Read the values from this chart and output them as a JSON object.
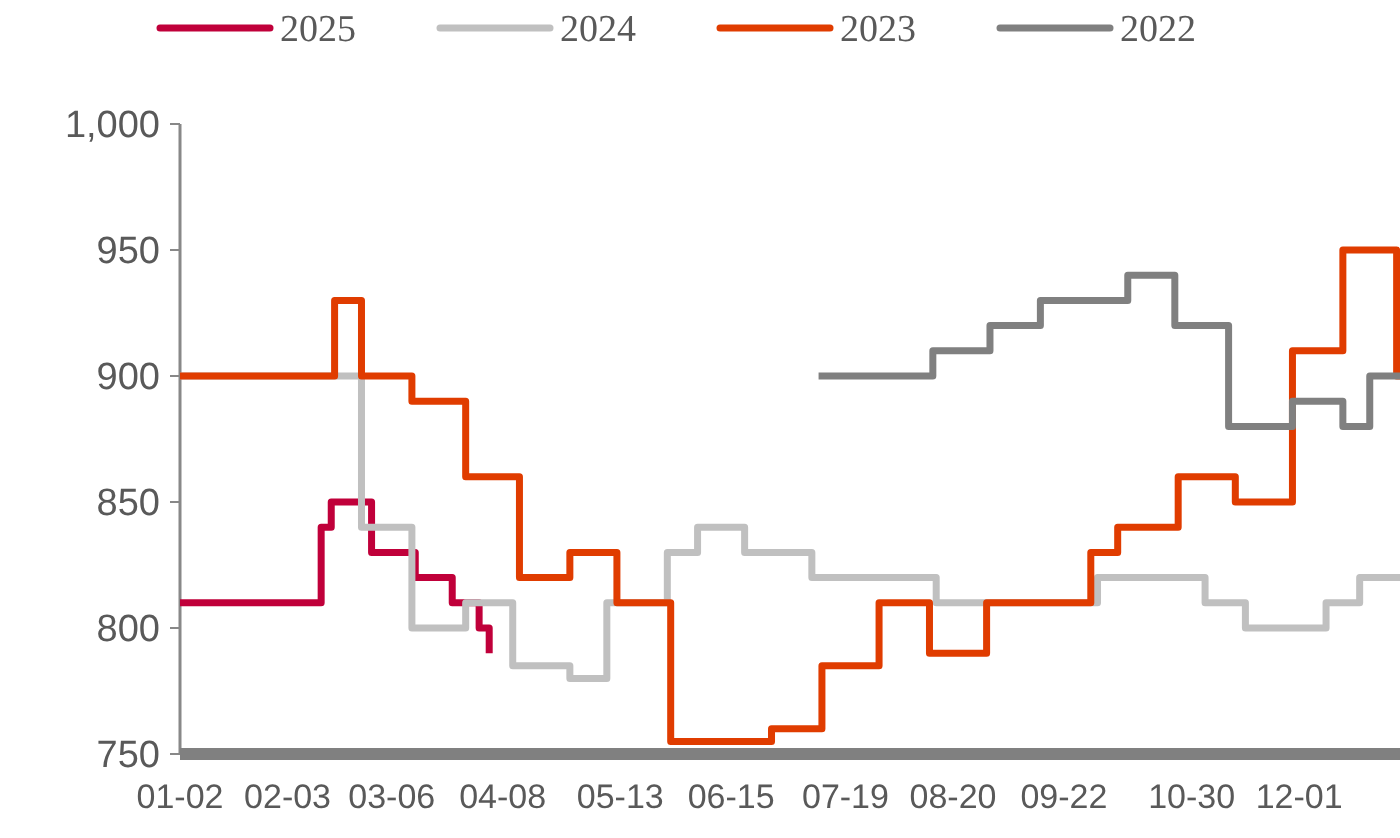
{
  "chart_data": {
    "type": "step",
    "legend": "top",
    "grid": false,
    "line_style": "solid",
    "marker": "none",
    "xlim": [
      "--01-02",
      "--12-31"
    ],
    "xticks": [
      {
        "value": "--01-02",
        "label": "01-02"
      },
      {
        "value": "--02-03",
        "label": "02-03"
      },
      {
        "value": "--03-06",
        "label": "03-06"
      },
      {
        "value": "--04-08",
        "label": "04-08"
      },
      {
        "value": "--05-13",
        "label": "05-13"
      },
      {
        "value": "--06-15",
        "label": "06-15"
      },
      {
        "value": "--07-19",
        "label": "07-19"
      },
      {
        "value": "--08-20",
        "label": "08-20"
      },
      {
        "value": "--09-22",
        "label": "09-22"
      },
      {
        "value": "--10-30",
        "label": "10-30"
      },
      {
        "value": "--12-01",
        "label": "12-01"
      }
    ],
    "ylim": [
      750,
      1000
    ],
    "yticks": [
      750,
      800,
      850,
      900,
      950,
      {
        "value": 1000,
        "label": "1,000"
      }
    ],
    "series": [
      {
        "name": "2025",
        "color": "#c0003a",
        "x": [
          "--01-02",
          "--02-13",
          "--02-16",
          "--02-28",
          "--03-13",
          "--03-24",
          "--04-01",
          "--04-04"
        ],
        "values": [
          810,
          840,
          850,
          830,
          820,
          810,
          800,
          790
        ]
      },
      {
        "name": "2024",
        "color": "#c0c0c0",
        "x": [
          "--01-02",
          "--02-25",
          "--03-12",
          "--03-28",
          "--04-11",
          "--04-28",
          "--05-09",
          "--05-27",
          "--06-05",
          "--06-19",
          "--07-09",
          "--08-15",
          "--10-02",
          "--11-03",
          "--11-15",
          "--12-09",
          "--12-19",
          "--12-31"
        ],
        "values": [
          900,
          840,
          800,
          810,
          785,
          780,
          810,
          830,
          840,
          830,
          820,
          810,
          820,
          810,
          800,
          810,
          820,
          820
        ]
      },
      {
        "name": "2023",
        "color": "#e03c00",
        "x": [
          "--01-02",
          "--02-17",
          "--02-25",
          "--03-12",
          "--03-28",
          "--04-13",
          "--04-28",
          "--05-12",
          "--05-28",
          "--06-27",
          "--07-12",
          "--07-29",
          "--08-13",
          "--08-30",
          "--09-30",
          "--10-08",
          "--10-26",
          "--11-12",
          "--11-29",
          "--12-14",
          "--12-30",
          "--12-31"
        ],
        "values": [
          900,
          930,
          900,
          890,
          860,
          820,
          830,
          810,
          755,
          760,
          785,
          810,
          790,
          810,
          830,
          840,
          860,
          850,
          910,
          950,
          900,
          900
        ]
      },
      {
        "name": "2022",
        "color": "#808080",
        "x": [
          "--07-11",
          "--08-14",
          "--08-31",
          "--09-15",
          "--10-11",
          "--10-25",
          "--11-10",
          "--11-29",
          "--12-14",
          "--12-22",
          "--12-31"
        ],
        "values": [
          900,
          910,
          920,
          930,
          940,
          920,
          880,
          890,
          880,
          900,
          900
        ]
      }
    ]
  }
}
